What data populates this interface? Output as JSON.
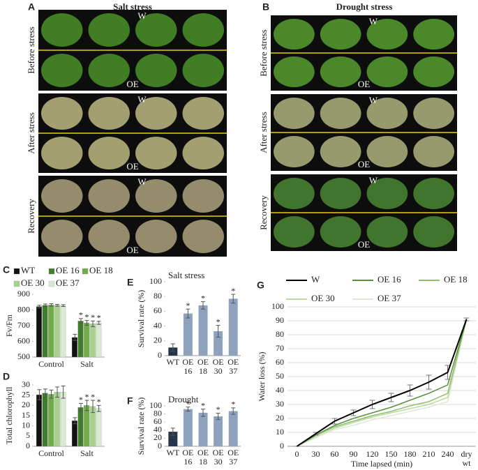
{
  "photo_panels": [
    {
      "label": "A",
      "title": "Salt stress",
      "rows": [
        {
          "label": "Before stress",
          "top": "W",
          "bottom": "OE"
        },
        {
          "label": "After stress",
          "top": "W",
          "bottom": "OE"
        },
        {
          "label": "Recovery",
          "top": "W",
          "bottom": "OE"
        }
      ]
    },
    {
      "label": "B",
      "title": "Drought stress",
      "rows": [
        {
          "label": "Before stress",
          "top": "W",
          "bottom": "OE"
        },
        {
          "label": "After stress",
          "top": "W",
          "bottom": "OE"
        },
        {
          "label": "Recovery",
          "top": "W",
          "bottom": "OE"
        }
      ]
    }
  ],
  "chart_data": [
    {
      "type": "bar",
      "label": "C",
      "y_label": "Fv/Fm",
      "categories": [
        "Control",
        "Salt"
      ],
      "series": [
        {
          "name": "WT",
          "color": "#111111",
          "values": [
            822,
            625
          ],
          "errors": [
            8,
            20
          ],
          "sig": [
            null,
            null
          ]
        },
        {
          "name": "OE 16",
          "color": "#3f7d2b",
          "values": [
            830,
            730
          ],
          "errors": [
            8,
            15
          ],
          "sig": [
            null,
            "*"
          ]
        },
        {
          "name": "OE 18",
          "color": "#70ad47",
          "values": [
            832,
            718
          ],
          "errors": [
            8,
            15
          ],
          "sig": [
            null,
            "*"
          ]
        },
        {
          "name": "OE 30",
          "color": "#a9d18e",
          "values": [
            830,
            712
          ],
          "errors": [
            6,
            18
          ],
          "sig": [
            null,
            "*"
          ]
        },
        {
          "name": "OE 37",
          "color": "#d9ead3",
          "values": [
            828,
            718
          ],
          "errors": [
            6,
            10
          ],
          "sig": [
            null,
            "*"
          ]
        }
      ],
      "ylim": [
        500,
        900
      ],
      "yticks": [
        500,
        600,
        700,
        800,
        900
      ],
      "grid": false
    },
    {
      "type": "bar",
      "label": "D",
      "y_label": "Total chlorophyll",
      "categories": [
        "Control",
        "Salt"
      ],
      "series": [
        {
          "name": "WT",
          "color": "#111111",
          "values": [
            25.2,
            12.5
          ],
          "errors": [
            2.5,
            1.5
          ],
          "sig": [
            null,
            null
          ]
        },
        {
          "name": "OE 16",
          "color": "#3f7d2b",
          "values": [
            26,
            19
          ],
          "errors": [
            2,
            2
          ],
          "sig": [
            null,
            "*"
          ]
        },
        {
          "name": "OE 18",
          "color": "#70ad47",
          "values": [
            25.5,
            20
          ],
          "errors": [
            2,
            2.5
          ],
          "sig": [
            null,
            "*"
          ]
        },
        {
          "name": "OE 30",
          "color": "#a9d18e",
          "values": [
            26.5,
            19.5
          ],
          "errors": [
            2.5,
            3
          ],
          "sig": [
            null,
            "*"
          ]
        },
        {
          "name": "OE 37",
          "color": "#d9ead3",
          "values": [
            26.5,
            18.5
          ],
          "errors": [
            3,
            1.5
          ],
          "sig": [
            null,
            "*"
          ]
        }
      ],
      "ylim": [
        0,
        30
      ],
      "yticks": [
        0,
        5,
        10,
        15,
        20,
        25,
        30
      ],
      "grid": false,
      "legend": false
    },
    {
      "type": "bar",
      "label": "E",
      "title": "Salt stress",
      "y_label": "Survival rate (%)",
      "categories": [
        "WT",
        "OE 16",
        "OE 18",
        "OE 30",
        "OE 37"
      ],
      "values": [
        11,
        57,
        68,
        33,
        77
      ],
      "errors": [
        5,
        6,
        5,
        8,
        6
      ],
      "sig": [
        null,
        "*",
        "*",
        "*",
        "*"
      ],
      "colors": [
        "#26364a",
        "#8ea2bd",
        "#8ea2bd",
        "#8ea2bd",
        "#8ea2bd"
      ],
      "ylim": [
        0,
        100
      ],
      "yticks": [
        0,
        20,
        40,
        60,
        80,
        100
      ],
      "grid": false
    },
    {
      "type": "bar",
      "label": "F",
      "title": "Drought",
      "y_label": "Survival rate (%)",
      "categories": [
        "WT",
        "OE 16",
        "OE 18",
        "OE 30",
        "OE 37"
      ],
      "values": [
        36,
        92,
        83,
        74,
        87
      ],
      "errors": [
        9,
        5,
        9,
        8,
        8
      ],
      "sig": [
        null,
        "*",
        "*",
        "*",
        "*"
      ],
      "colors": [
        "#26364a",
        "#8ea2bd",
        "#8ea2bd",
        "#8ea2bd",
        "#8ea2bd"
      ],
      "ylim": [
        0,
        100
      ],
      "yticks": [
        0,
        20,
        40,
        60,
        80,
        100
      ],
      "grid": false
    },
    {
      "type": "line",
      "label": "G",
      "x_label": "Time lapsed (min)",
      "y_label": "Water loss (%)",
      "categories": [
        "0",
        "30",
        "60",
        "90",
        "120",
        "150",
        "180",
        "210",
        "240",
        "dry wt"
      ],
      "series": [
        {
          "name": "W",
          "color": "#000000",
          "values": [
            0,
            9,
            18,
            24,
            30,
            35,
            40,
            46,
            53,
            91
          ],
          "errors": [
            0,
            1,
            2,
            2,
            3,
            3,
            4,
            5,
            5,
            1
          ]
        },
        {
          "name": "OE 16",
          "color": "#5b8f3e",
          "values": [
            0,
            8,
            15,
            20,
            24,
            28,
            33,
            38,
            44,
            91
          ]
        },
        {
          "name": "OE 18",
          "color": "#8fbf6a",
          "values": [
            0,
            8,
            14,
            18,
            22,
            25,
            29,
            32,
            38,
            91
          ]
        },
        {
          "name": "OE 30",
          "color": "#bcdca0",
          "values": [
            0,
            7,
            13,
            17,
            21,
            24,
            27,
            30,
            35,
            91
          ]
        },
        {
          "name": "OE 37",
          "color": "#dfe8d8",
          "values": [
            0,
            6,
            12,
            15,
            19,
            22,
            25,
            28,
            32,
            91
          ]
        }
      ],
      "ylim": [
        0,
        100
      ],
      "yticks": [
        0,
        10,
        20,
        30,
        40,
        50,
        60,
        70,
        80,
        90,
        100
      ],
      "grid": true
    }
  ]
}
